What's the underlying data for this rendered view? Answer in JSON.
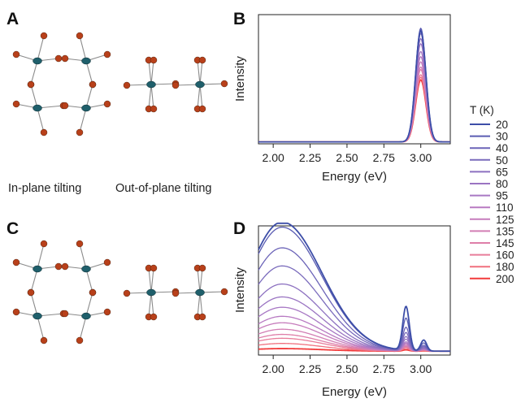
{
  "panels": {
    "A": {
      "letter": "A",
      "captions": [
        "In-plane tilting",
        "Out-of-plane tilting"
      ]
    },
    "B": {
      "letter": "B"
    },
    "C": {
      "letter": "C"
    },
    "D": {
      "letter": "D"
    }
  },
  "atom_colors": {
    "metal": "#1f5f6b",
    "halide": "#b8401a",
    "bond": "#8a8a8a"
  },
  "chart_data": [
    {
      "panel": "B",
      "type": "line",
      "xlabel": "Energy (eV)",
      "ylabel": "Intensity",
      "xlim": [
        1.9,
        3.2
      ],
      "xticks": [
        2.0,
        2.25,
        2.5,
        2.75,
        3.0
      ],
      "xtick_labels": [
        "2.00",
        "2.25",
        "2.50",
        "2.75",
        "3.00"
      ],
      "y_ticks_shown": false,
      "series_temperatures_K": [
        20,
        30,
        40,
        50,
        65,
        80,
        95,
        110,
        125,
        135,
        145,
        160,
        180,
        200
      ],
      "peak_energy_eV": 3.0,
      "peak_width_eV": 0.035,
      "peak_heights_norm": [
        0.86,
        0.88,
        0.87,
        0.84,
        0.8,
        0.76,
        0.7,
        0.66,
        0.62,
        0.58,
        0.56,
        0.52,
        0.5,
        0.48
      ],
      "baseline_norm": 0.015
    },
    {
      "panel": "D",
      "type": "line",
      "xlabel": "Energy (eV)",
      "ylabel": "Intensity",
      "xlim": [
        1.9,
        3.2
      ],
      "xticks": [
        2.0,
        2.25,
        2.5,
        2.75,
        3.0
      ],
      "xtick_labels": [
        "2.00",
        "2.25",
        "2.50",
        "2.75",
        "3.00"
      ],
      "y_ticks_shown": false,
      "series_temperatures_K": [
        20,
        30,
        40,
        50,
        65,
        80,
        95,
        110,
        125,
        135,
        145,
        160,
        180,
        200
      ],
      "broad_band_center_eV": 2.06,
      "broad_band_width_eV": 0.27,
      "broad_band_heights_norm": [
        1.0,
        0.96,
        0.8,
        0.66,
        0.52,
        0.42,
        0.34,
        0.27,
        0.22,
        0.17,
        0.13,
        0.1,
        0.06,
        0.02
      ],
      "narrow_peak_energy_eV": 2.9,
      "narrow_peak_width_eV": 0.022,
      "narrow_peak_heights_norm": [
        0.34,
        0.25,
        0.18,
        0.14,
        0.11,
        0.09,
        0.07,
        0.06,
        0.05,
        0.04,
        0.035,
        0.03,
        0.02,
        0.01
      ]
    }
  ],
  "legend": {
    "title": "T (K)",
    "entries": [
      "20",
      "30",
      "40",
      "50",
      "65",
      "80",
      "95",
      "110",
      "125",
      "135",
      "145",
      "160",
      "180",
      "200"
    ],
    "colors": [
      "#3d4ea8",
      "#5a5cb2",
      "#6c64b8",
      "#7a6bbc",
      "#8c70c0",
      "#9a74c2",
      "#a878c4",
      "#b87ac2",
      "#c67cbc",
      "#d27eb4",
      "#de7ea8",
      "#e87c9a",
      "#f0707e",
      "#f23b3b"
    ]
  }
}
